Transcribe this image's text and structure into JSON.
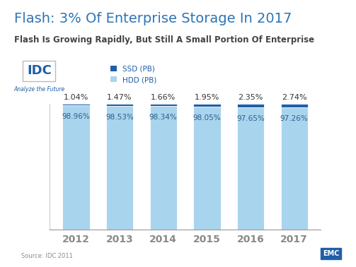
{
  "chart_data": {
    "type": "bar",
    "stacked": true,
    "title": "Flash: 3% Of Enterprise Storage In 2017",
    "subtitle": "Flash Is Growing Rapidly, But Still A Small Portion Of Enterprise",
    "categories": [
      "2012",
      "2013",
      "2014",
      "2015",
      "2016",
      "2017"
    ],
    "series": [
      {
        "name": "HDD (PB)",
        "color": "#a9d4ee",
        "values": [
          98.96,
          98.53,
          98.34,
          98.05,
          97.65,
          97.26
        ],
        "value_labels": [
          "98.96%",
          "98.53%",
          "98.34%",
          "98.05%",
          "97.65%",
          "97.26%"
        ]
      },
      {
        "name": "SSD (PB)",
        "color": "#1f5fa6",
        "values": [
          1.04,
          1.47,
          1.66,
          1.95,
          2.35,
          2.74
        ],
        "value_labels": [
          "1.04%",
          "1.47%",
          "1.66%",
          "1.95%",
          "2.35%",
          "2.74%"
        ]
      }
    ],
    "ylim": [
      0,
      100
    ],
    "data_labels": true,
    "tick_labels": "x",
    "grid": false,
    "legend": "upper left",
    "annotations": [
      "IDC",
      "Analyze the Future",
      "Source: IDC 2011",
      "EMC"
    ]
  }
}
